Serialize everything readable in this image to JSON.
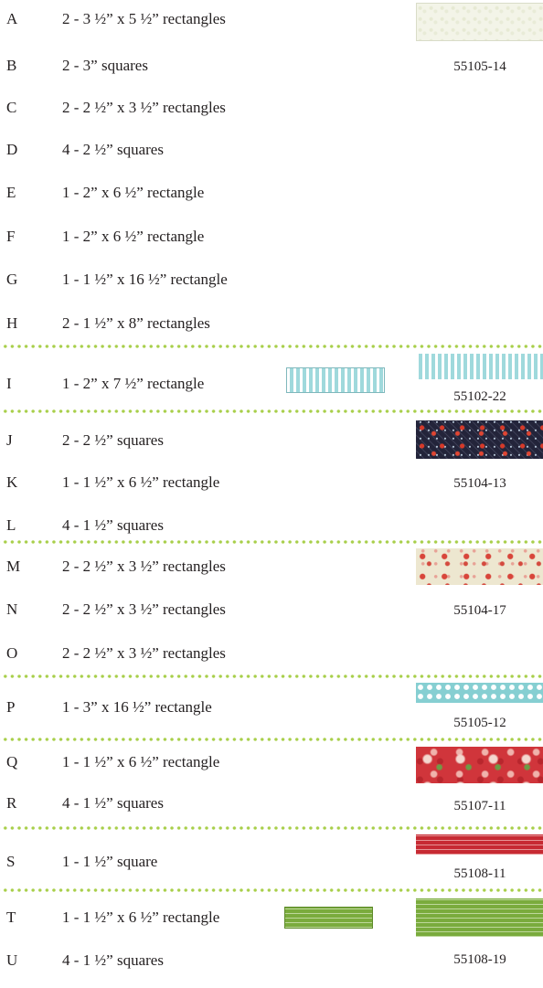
{
  "cutting_list": [
    {
      "letter": "A",
      "desc": "2 - 3 ½” x 5 ½” rectangles"
    },
    {
      "letter": "B",
      "desc": "2 - 3” squares"
    },
    {
      "letter": "C",
      "desc": "2 - 2 ½” x 3 ½” rectangles"
    },
    {
      "letter": "D",
      "desc": "4 - 2 ½” squares"
    },
    {
      "letter": "E",
      "desc": "1 - 2” x 6 ½” rectangle"
    },
    {
      "letter": "F",
      "desc": "1 - 2” x 6 ½” rectangle"
    },
    {
      "letter": "G",
      "desc": "1 - 1 ½” x 16 ½” rectangle"
    },
    {
      "letter": "H",
      "desc": "2 - 1 ½” x 8” rectangles"
    },
    {
      "letter": "I",
      "desc": "1 - 2” x 7 ½” rectangle"
    },
    {
      "letter": "J",
      "desc": "2 - 2 ½” squares"
    },
    {
      "letter": "K",
      "desc": "1 - 1 ½” x 6 ½” rectangle"
    },
    {
      "letter": "L",
      "desc": "4 - 1 ½” squares"
    },
    {
      "letter": "M",
      "desc": "2 - 2 ½” x 3 ½” rectangles"
    },
    {
      "letter": "N",
      "desc": "2 - 2 ½” x 3 ½” rectangles"
    },
    {
      "letter": "O",
      "desc": "2 - 2 ½” x 3 ½” rectangles"
    },
    {
      "letter": "P",
      "desc": "1 - 3” x 16 ½” rectangle"
    },
    {
      "letter": "Q",
      "desc": "1 - 1 ½” x 6 ½” rectangle"
    },
    {
      "letter": "R",
      "desc": "4 - 1 ½” squares"
    },
    {
      "letter": "S",
      "desc": "1 - 1 ½” square"
    },
    {
      "letter": "T",
      "desc": "1 - 1 ½” x 6 ½” rectangle"
    },
    {
      "letter": "U",
      "desc": "4 - 1 ½” squares"
    }
  ],
  "fabrics": [
    {
      "code": "55105-14",
      "pattern": "cream-tone-on-tone"
    },
    {
      "code": "55102-22",
      "pattern": "aqua-stripe"
    },
    {
      "code": "55104-13",
      "pattern": "navy-red-floral"
    },
    {
      "code": "55104-17",
      "pattern": "cream-red-floral"
    },
    {
      "code": "55105-12",
      "pattern": "aqua-dot"
    },
    {
      "code": "55107-11",
      "pattern": "red-large-floral"
    },
    {
      "code": "55108-11",
      "pattern": "red-script-text"
    },
    {
      "code": "55108-19",
      "pattern": "green-script-text"
    }
  ],
  "colors": {
    "divider": "#a8cf4a",
    "text": "#231f20"
  }
}
